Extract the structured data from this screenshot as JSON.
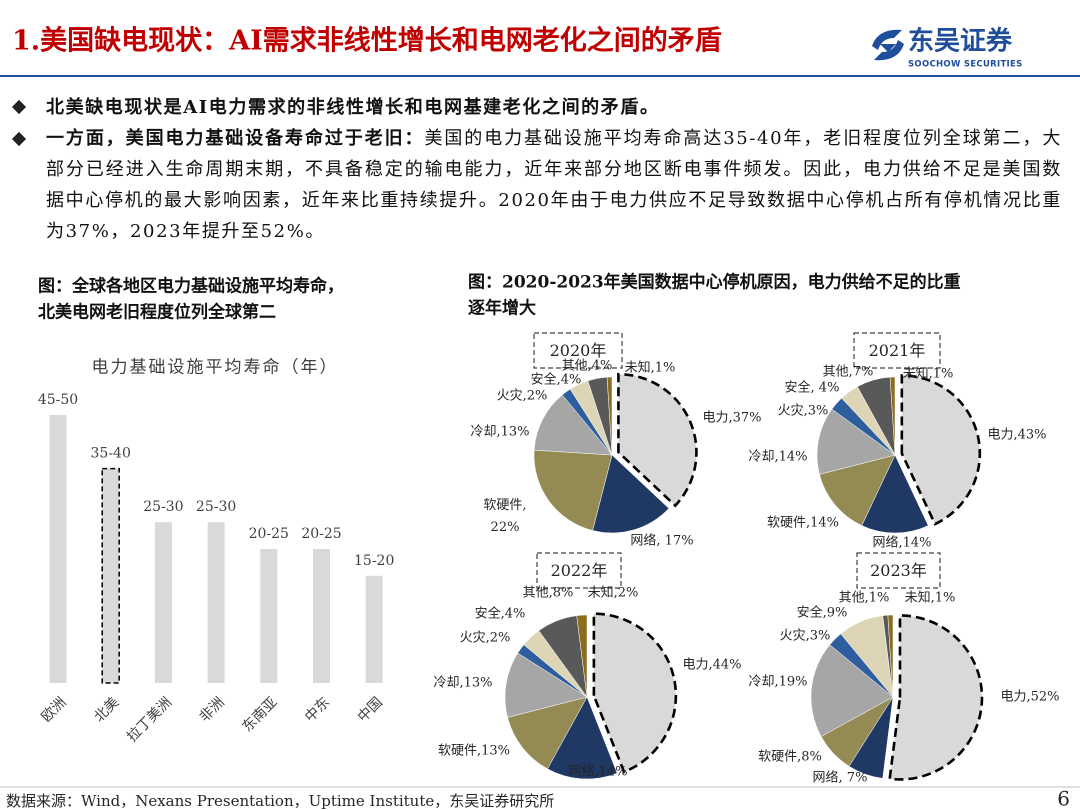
{
  "header": {
    "title": "1.美国缺电现状：AI需求非线性增长和电网老化之间的矛盾",
    "logo_cn": "东吴证券",
    "logo_en": "SOOCHOW SECURITIES"
  },
  "bullets": [
    {
      "bold": "北美缺电现状是AI电力需求的非线性增长和电网基建老化之间的矛盾。"
    },
    {
      "bold": "一方面，美国电力基础设备寿命过于老旧：",
      "text": "美国的电力基础设施平均寿命高达35-40年，老旧程度位列全球第二，大部分已经进入生命周期末期，不具备稳定的输电能力，近年来部分地区断电事件频发。因此，电力供给不足是美国数据中心停机的最大影响因素，近年来比重持续提升。2020年由于电力供应不足导致数据中心停机占所有停机情况比重为37%，2023年提升至52%。"
    }
  ],
  "captions": [
    [
      "图：全球各地区电力基础设施平均寿命，",
      "北美电网老旧程度位列全球第二"
    ],
    [
      "图：2020-2023年美国数据中心停机原因，电力供给不足的比重",
      "逐年增大"
    ]
  ],
  "chart_data": [
    {
      "type": "bar",
      "title": "电力基础设施平均寿命（年）",
      "categories": [
        "欧洲",
        "北美",
        "拉丁美洲",
        "非洲",
        "东南亚",
        "中东",
        "中国"
      ],
      "values": [
        50,
        40,
        30,
        30,
        25,
        25,
        20
      ],
      "value_labels": [
        "45-50",
        "35-40",
        "25-30",
        "25-30",
        "20-25",
        "20-25",
        "15-20"
      ],
      "color": "#d9d9d9",
      "highlight": 1
    },
    {
      "type": "pie",
      "title": "2020年",
      "values": [
        37,
        17,
        22,
        13,
        2,
        4,
        4,
        1
      ],
      "value_labels": [
        "电力,37%",
        "网络, 17%",
        "软硬件,\n22%",
        "冷却,13%",
        "火灾,2%",
        "安全,4%",
        "其他,4%",
        "未知,1%"
      ],
      "colors": [
        "#d9d9d9",
        "#1f3864",
        "#948a54",
        "#a6a6a6",
        "#2e5e9e",
        "#ddd5b5",
        "#595959",
        "#8b6d1e"
      ],
      "highlight": 0
    },
    {
      "type": "pie",
      "title": "2021年",
      "values": [
        43,
        14,
        14,
        14,
        3,
        4,
        7,
        1
      ],
      "value_labels": [
        "电力,43%",
        "网络,14%",
        "软硬件,14%",
        "冷却,14%",
        "火灾,3%",
        "安全, 4%",
        "其他,7%",
        "未知,1%"
      ],
      "colors": [
        "#d9d9d9",
        "#1f3864",
        "#948a54",
        "#a6a6a6",
        "#2e5e9e",
        "#ddd5b5",
        "#595959",
        "#8b6d1e"
      ],
      "highlight": 0
    },
    {
      "type": "pie",
      "title": "2022年",
      "values": [
        44,
        14,
        13,
        13,
        2,
        4,
        8,
        2
      ],
      "value_labels": [
        "电力,44%",
        "网络,14%",
        "软硬件,13%",
        "冷却,13%",
        "火灾,2%",
        "安全,4%",
        "其他,8%",
        "未知,2%"
      ],
      "colors": [
        "#d9d9d9",
        "#1f3864",
        "#948a54",
        "#a6a6a6",
        "#2e5e9e",
        "#ddd5b5",
        "#595959",
        "#8b6d1e"
      ],
      "highlight": 0
    },
    {
      "type": "pie",
      "title": "2023年",
      "values": [
        52,
        7,
        8,
        19,
        3,
        9,
        1,
        1
      ],
      "value_labels": [
        "电力,52%",
        "网络, 7%",
        "软硬件,8%",
        "冷却,19%",
        "火灾,3%",
        "安全,9%",
        "其他,1%",
        "未知,1%"
      ],
      "colors": [
        "#d9d9d9",
        "#1f3864",
        "#948a54",
        "#a6a6a6",
        "#2e5e9e",
        "#ddd5b5",
        "#595959",
        "#8b6d1e"
      ],
      "highlight": 0
    }
  ],
  "footer": {
    "source": "数据来源：Wind，Nexans Presentation，Uptime Institute，东吴证券研究所",
    "page": "6"
  }
}
